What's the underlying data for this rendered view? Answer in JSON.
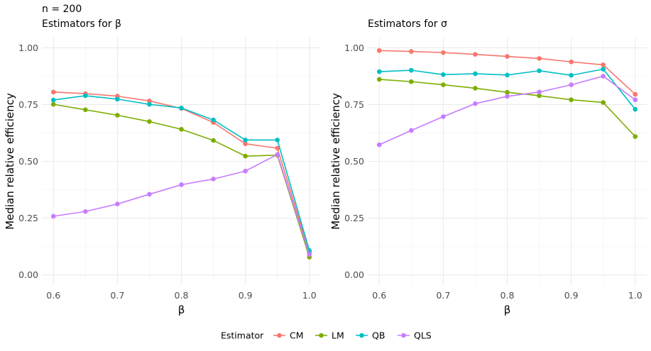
{
  "figure": {
    "subtitle": "n = 200"
  },
  "estimators": [
    "CM",
    "LM",
    "QB",
    "QLS"
  ],
  "colors": {
    "CM": "#F8766D",
    "LM": "#7CAE00",
    "QB": "#00BFC4",
    "QLS": "#C77CFF",
    "grid_major": "#ebebeb",
    "grid_minor": "#f5f5f5"
  },
  "legend": {
    "title": "Estimator",
    "position": "bottom",
    "items": [
      "CM",
      "LM",
      "QB",
      "QLS"
    ]
  },
  "chart_data": [
    {
      "type": "line",
      "title": "Estimators for β",
      "xlabel": "β",
      "ylabel": "Median relative efficiency",
      "xlim": [
        0.6,
        1.0
      ],
      "ylim": [
        0,
        1
      ],
      "xticks": [
        0.6,
        0.7,
        0.8,
        0.9,
        1.0
      ],
      "xtick_labels": [
        "0.6",
        "0.7",
        "0.8",
        "0.9",
        "1.0"
      ],
      "yticks": [
        0,
        0.25,
        0.5,
        0.75,
        1.0
      ],
      "ytick_labels": [
        "0.00",
        "0.25",
        "0.50",
        "0.75",
        "1.00"
      ],
      "x": [
        0.6,
        0.65,
        0.7,
        0.75,
        0.8,
        0.85,
        0.9,
        0.95,
        1.0
      ],
      "series": [
        {
          "name": "CM",
          "values": [
            0.805,
            0.798,
            0.787,
            0.766,
            0.733,
            0.671,
            0.577,
            0.558,
            0.098
          ]
        },
        {
          "name": "LM",
          "values": [
            0.751,
            0.727,
            0.703,
            0.675,
            0.641,
            0.592,
            0.523,
            0.527,
            0.078
          ]
        },
        {
          "name": "QB",
          "values": [
            0.77,
            0.789,
            0.774,
            0.751,
            0.735,
            0.682,
            0.594,
            0.594,
            0.107
          ]
        },
        {
          "name": "QLS",
          "values": [
            0.258,
            0.279,
            0.312,
            0.355,
            0.397,
            0.422,
            0.457,
            0.53,
            0.09
          ]
        }
      ]
    },
    {
      "type": "line",
      "title": "Estimators for σ",
      "xlabel": "β",
      "ylabel": "Median relative efficiency",
      "xlim": [
        0.6,
        1.0
      ],
      "ylim": [
        0,
        1
      ],
      "xticks": [
        0.6,
        0.7,
        0.8,
        0.9,
        1.0
      ],
      "xtick_labels": [
        "0.6",
        "0.7",
        "0.8",
        "0.9",
        "1.0"
      ],
      "yticks": [
        0,
        0.25,
        0.5,
        0.75,
        1.0
      ],
      "ytick_labels": [
        "0.00",
        "0.25",
        "0.50",
        "0.75",
        "1.00"
      ],
      "x": [
        0.6,
        0.65,
        0.7,
        0.75,
        0.8,
        0.85,
        0.9,
        0.95,
        1.0
      ],
      "series": [
        {
          "name": "CM",
          "values": [
            0.988,
            0.984,
            0.979,
            0.971,
            0.962,
            0.953,
            0.938,
            0.925,
            0.795
          ]
        },
        {
          "name": "LM",
          "values": [
            0.861,
            0.851,
            0.837,
            0.822,
            0.804,
            0.789,
            0.771,
            0.759,
            0.609
          ]
        },
        {
          "name": "QB",
          "values": [
            0.895,
            0.901,
            0.882,
            0.886,
            0.88,
            0.899,
            0.879,
            0.906,
            0.729
          ]
        },
        {
          "name": "QLS",
          "values": [
            0.573,
            0.636,
            0.697,
            0.754,
            0.786,
            0.805,
            0.837,
            0.875,
            0.771
          ]
        }
      ]
    }
  ]
}
